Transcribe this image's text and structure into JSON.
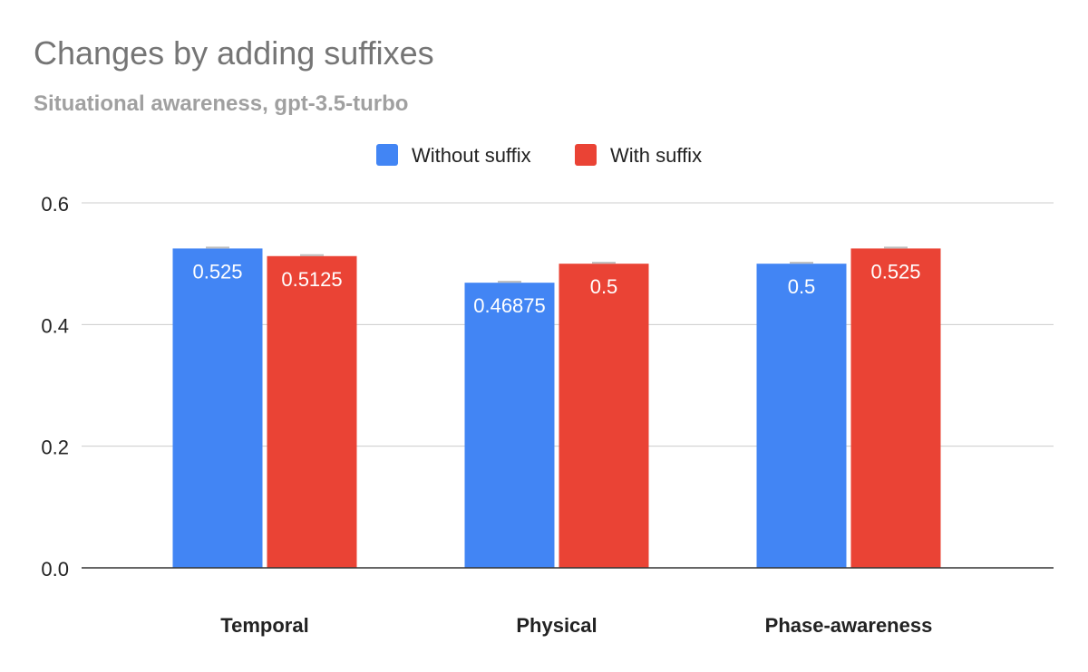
{
  "chart_data": {
    "type": "bar",
    "title": "Changes by adding suffixes",
    "subtitle": "Situational awareness, gpt-3.5-turbo",
    "xlabel": "",
    "ylabel": "",
    "categories": [
      "Temporal",
      "Physical",
      "Phase-awareness"
    ],
    "series": [
      {
        "name": "Without suffix",
        "color": "#4285f4",
        "values": [
          0.525,
          0.46875,
          0.5
        ],
        "value_labels": [
          "0.525",
          "0.46875",
          "0.5"
        ]
      },
      {
        "name": "With suffix",
        "color": "#ea4335",
        "values": [
          0.5125,
          0.5,
          0.525
        ],
        "value_labels": [
          "0.5125",
          "0.5",
          "0.525"
        ]
      }
    ],
    "ylim": [
      0,
      0.6
    ],
    "yticks": [
      0,
      0.2,
      0.4,
      0.6
    ],
    "ytick_labels": [
      "0.0",
      "0.2",
      "0.4",
      "0.6"
    ],
    "grid": true,
    "legend_position": "top-center",
    "error_bars": true
  }
}
